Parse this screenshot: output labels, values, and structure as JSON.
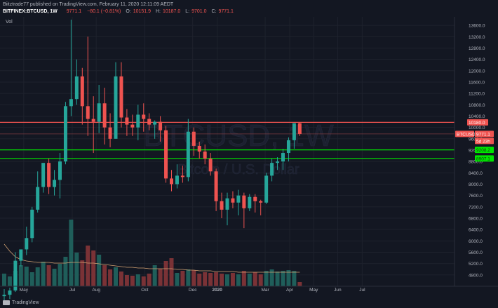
{
  "header": {
    "publisher_line": "Biitztrade77 published on TradingView.com, February 11, 2020 12:11:09 AEDT",
    "symbol": "BITFINEX:BTCUSD, 1W",
    "last": "9771.1",
    "change": "−80.1 (−0.81%)",
    "o_label": "O:",
    "o_value": "10151.9",
    "h_label": "H:",
    "h_value": "10187.0",
    "l_label": "L:",
    "l_value": "9701.0",
    "c_label": "C:",
    "c_value": "9771.1"
  },
  "footer": {
    "logo_text": "TradingView"
  },
  "colors": {
    "up": "#26a69a",
    "down": "#ef5350",
    "bg": "#131722",
    "grid": "#1e222d",
    "ma": "#d4a373"
  },
  "chart_data": {
    "type": "candlestick",
    "volume_label": "Vol",
    "watermark": "BTCUSD, 1W",
    "watermark_sub": "Bitcoin / U.S. Dollar",
    "ylim": [
      4400,
      13900
    ],
    "y_ticks": [
      4800,
      5200,
      5600,
      6000,
      6400,
      6800,
      7200,
      7600,
      8000,
      8400,
      8800,
      9200,
      9600,
      10000,
      10400,
      10800,
      11200,
      11600,
      12000,
      12400,
      12800,
      13200,
      13600
    ],
    "y_tick_labels": [
      "4800.0",
      "5200.0",
      "5600.0",
      "6000.0",
      "6400.0",
      "6800.0",
      "7200.0",
      "7600.0",
      "8000.0",
      "8400.0",
      "8800.0",
      "9200.0",
      "9600.0",
      "10000.0",
      "10400.0",
      "10800.0",
      "11200.0",
      "11600.0",
      "12000.0",
      "12400.0",
      "12800.0",
      "13200.0",
      "13600.0"
    ],
    "x_tick_labels": [
      {
        "label": "May",
        "idx": 3.5
      },
      {
        "label": "Jul",
        "idx": 12.2
      },
      {
        "label": "Aug",
        "idx": 16.5
      },
      {
        "label": "Oct",
        "idx": 25.2
      },
      {
        "label": "Dec",
        "idx": 33.8
      },
      {
        "label": "2020",
        "idx": 38.2
      },
      {
        "label": "Mar",
        "idx": 46.8
      },
      {
        "label": "Apr",
        "idx": 51.2
      },
      {
        "label": "May",
        "idx": 55.5
      },
      {
        "label": "Jun",
        "idx": 59.8
      },
      {
        "label": "Jul",
        "idx": 64.2
      }
    ],
    "horizontal_lines": [
      {
        "price": 10180,
        "label": "10180.0",
        "color": "#ef5350"
      },
      {
        "price": 9208.2,
        "label": "9208.2",
        "color": "#00e600"
      },
      {
        "price": 8907.1,
        "label": "8907.1",
        "color": "#00e600"
      }
    ],
    "last_price": {
      "price": 9771.1,
      "label": "BTCUSD",
      "value": "9771.1",
      "countdown": "5d 23h"
    },
    "candles": [
      {
        "o": 4050,
        "h": 4300,
        "l": 3850,
        "c": 4100
      },
      {
        "o": 4100,
        "h": 4350,
        "l": 3950,
        "c": 4250
      },
      {
        "o": 4250,
        "h": 5600,
        "l": 4200,
        "c": 5300
      },
      {
        "o": 5300,
        "h": 5700,
        "l": 5100,
        "c": 5700
      },
      {
        "o": 5700,
        "h": 6500,
        "l": 5500,
        "c": 6100
      },
      {
        "o": 6100,
        "h": 7200,
        "l": 5950,
        "c": 7100
      },
      {
        "o": 7100,
        "h": 8450,
        "l": 7000,
        "c": 7900
      },
      {
        "o": 7900,
        "h": 8700,
        "l": 7700,
        "c": 8750
      },
      {
        "o": 8750,
        "h": 8900,
        "l": 7650,
        "c": 7900
      },
      {
        "o": 7900,
        "h": 8500,
        "l": 7600,
        "c": 8150
      },
      {
        "o": 8150,
        "h": 9100,
        "l": 7500,
        "c": 8800
      },
      {
        "o": 8800,
        "h": 10900,
        "l": 8700,
        "c": 10750
      },
      {
        "o": 10750,
        "h": 13800,
        "l": 10400,
        "c": 11000
      },
      {
        "o": 11000,
        "h": 12400,
        "l": 10800,
        "c": 11800
      },
      {
        "o": 11800,
        "h": 12100,
        "l": 10100,
        "c": 10750
      },
      {
        "o": 10750,
        "h": 13200,
        "l": 9700,
        "c": 10300
      },
      {
        "o": 10300,
        "h": 11100,
        "l": 9100,
        "c": 10200
      },
      {
        "o": 10200,
        "h": 11500,
        "l": 9800,
        "c": 10850
      },
      {
        "o": 10850,
        "h": 11400,
        "l": 9400,
        "c": 10000
      },
      {
        "o": 10000,
        "h": 10500,
        "l": 9300,
        "c": 9600
      },
      {
        "o": 9600,
        "h": 12300,
        "l": 9600,
        "c": 11800
      },
      {
        "o": 11800,
        "h": 12300,
        "l": 10000,
        "c": 10350
      },
      {
        "o": 10350,
        "h": 10650,
        "l": 9700,
        "c": 10100
      },
      {
        "o": 10100,
        "h": 10450,
        "l": 9700,
        "c": 10000
      },
      {
        "o": 10000,
        "h": 10800,
        "l": 9550,
        "c": 10450
      },
      {
        "o": 10450,
        "h": 10850,
        "l": 9850,
        "c": 10300
      },
      {
        "o": 10300,
        "h": 10500,
        "l": 9900,
        "c": 10100
      },
      {
        "o": 10100,
        "h": 10250,
        "l": 9600,
        "c": 10200
      },
      {
        "o": 10200,
        "h": 10400,
        "l": 9500,
        "c": 9900
      },
      {
        "o": 9900,
        "h": 10050,
        "l": 8050,
        "c": 8200
      },
      {
        "o": 8200,
        "h": 8500,
        "l": 7750,
        "c": 8000
      },
      {
        "o": 8000,
        "h": 8700,
        "l": 7850,
        "c": 8300
      },
      {
        "o": 8300,
        "h": 8650,
        "l": 8050,
        "c": 8250
      },
      {
        "o": 8250,
        "h": 10300,
        "l": 8100,
        "c": 9850
      },
      {
        "o": 9850,
        "h": 10000,
        "l": 9000,
        "c": 9350
      },
      {
        "o": 9350,
        "h": 9500,
        "l": 8900,
        "c": 9150
      },
      {
        "o": 9150,
        "h": 9400,
        "l": 8700,
        "c": 8900
      },
      {
        "o": 8900,
        "h": 9100,
        "l": 8300,
        "c": 8450
      },
      {
        "o": 8450,
        "h": 8550,
        "l": 7050,
        "c": 7400
      },
      {
        "o": 7400,
        "h": 7700,
        "l": 6800,
        "c": 7100
      },
      {
        "o": 7100,
        "h": 7700,
        "l": 6550,
        "c": 7500
      },
      {
        "o": 7500,
        "h": 7750,
        "l": 7150,
        "c": 7350
      },
      {
        "o": 7350,
        "h": 7800,
        "l": 6900,
        "c": 7600
      },
      {
        "o": 7600,
        "h": 7700,
        "l": 6450,
        "c": 7150
      },
      {
        "o": 7150,
        "h": 7650,
        "l": 7050,
        "c": 7550
      },
      {
        "o": 7550,
        "h": 7650,
        "l": 7000,
        "c": 7400
      },
      {
        "o": 7400,
        "h": 7450,
        "l": 6900,
        "c": 7350
      },
      {
        "o": 7350,
        "h": 8400,
        "l": 7300,
        "c": 8300
      },
      {
        "o": 8300,
        "h": 8900,
        "l": 8100,
        "c": 8750
      },
      {
        "o": 8750,
        "h": 8950,
        "l": 8500,
        "c": 8800
      },
      {
        "o": 8800,
        "h": 9250,
        "l": 8500,
        "c": 9100
      },
      {
        "o": 9100,
        "h": 9650,
        "l": 8800,
        "c": 9550
      },
      {
        "o": 9550,
        "h": 10150,
        "l": 9250,
        "c": 10150
      },
      {
        "o": 10150,
        "h": 10190,
        "l": 9700,
        "c": 9770
      }
    ],
    "volumes": [
      0.18,
      0.14,
      0.22,
      0.3,
      0.28,
      0.2,
      0.27,
      0.35,
      0.3,
      0.25,
      0.32,
      0.42,
      0.95,
      0.48,
      0.37,
      0.58,
      0.51,
      0.45,
      0.3,
      0.24,
      0.27,
      0.21,
      0.16,
      0.15,
      0.17,
      0.14,
      0.18,
      0.3,
      0.25,
      0.36,
      0.4,
      0.19,
      0.22,
      0.24,
      0.23,
      0.18,
      0.2,
      0.19,
      0.2,
      0.18,
      0.17,
      0.19,
      0.17,
      0.22,
      0.18,
      0.2,
      0.17,
      0.22,
      0.24,
      0.21,
      0.22,
      0.23,
      0.22,
      0.06
    ],
    "volume_ma": [
      0.6,
      0.5,
      0.42,
      0.38,
      0.36,
      0.35,
      0.34,
      0.34,
      0.34,
      0.33,
      0.33,
      0.33,
      0.34,
      0.34,
      0.34,
      0.33,
      0.33,
      0.32,
      0.31,
      0.3,
      0.29,
      0.28,
      0.27,
      0.27,
      0.26,
      0.26,
      0.25,
      0.25,
      0.25,
      0.25,
      0.25,
      0.24,
      0.24,
      0.23,
      0.23,
      0.22,
      0.22,
      0.22,
      0.21,
      0.21,
      0.21,
      0.21,
      0.2,
      0.2,
      0.2,
      0.2,
      0.2,
      0.2,
      0.2,
      0.2,
      0.2,
      0.2,
      0.2,
      0.2
    ]
  }
}
